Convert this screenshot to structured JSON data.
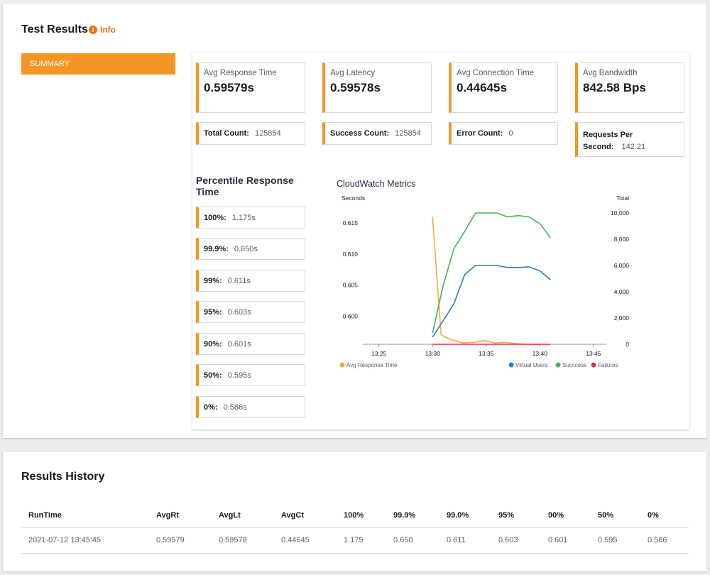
{
  "test_results": {
    "title": "Test Results",
    "info_label": "Info",
    "summary_label": "SUMMARY"
  },
  "metrics": [
    {
      "label": "Avg Response Time",
      "value": "0.59579s"
    },
    {
      "label": "Avg Latency",
      "value": "0.59578s"
    },
    {
      "label": "Avg Connection Time",
      "value": "0.44645s"
    },
    {
      "label": "Avg Bandwidth",
      "value": "842.58 Bps"
    }
  ],
  "counts": [
    {
      "label": "Total Count:",
      "value": "125854"
    },
    {
      "label": "Success Count:",
      "value": "125854"
    },
    {
      "label": "Error Count:",
      "value": "0"
    }
  ],
  "requests_per_second": {
    "label_line1": "Requests Per",
    "label_line2": "Second:",
    "value": "142.21"
  },
  "percentile": {
    "title": "Percentile Response Time",
    "items": [
      {
        "label": "100%:",
        "value": "1.175s"
      },
      {
        "label": "99.9%:",
        "value": "0.650s"
      },
      {
        "label": "99%:",
        "value": "0.611s"
      },
      {
        "label": "95%:",
        "value": "0.603s"
      },
      {
        "label": "90%:",
        "value": "0.601s"
      },
      {
        "label": "50%:",
        "value": "0.595s"
      },
      {
        "label": "0%:",
        "value": "0.586s"
      }
    ]
  },
  "chart_data": {
    "type": "line",
    "title": "CloudWatch Metrics",
    "y_left_label": "Seconds",
    "y_right_label": "Total",
    "x_ticks": [
      "13:25",
      "13:30",
      "13:35",
      "13:40",
      "13:45"
    ],
    "y_left_ticks": [
      0.6,
      0.605,
      0.61,
      0.615
    ],
    "y_left_tick_labels": [
      "0.600",
      "0.605",
      "0.610",
      "0.615"
    ],
    "y_left_range": [
      0.5955,
      0.6175
    ],
    "y_right_ticks": [
      0,
      2000,
      4000,
      6000,
      8000,
      10000
    ],
    "y_right_tick_labels": [
      "0",
      "2,000",
      "4,000",
      "6,000",
      "8,000",
      "10,000"
    ],
    "y_right_range": [
      0,
      10000
    ],
    "grid": false,
    "legend": "bottom",
    "x_minutes": [
      13.5,
      14.5,
      15.5,
      16.5,
      17.5,
      18.5,
      19.5,
      20.5,
      21.5,
      22.5,
      23.5,
      24.5
    ],
    "series": [
      {
        "name": "Avg Response Time",
        "axis": "left",
        "color": "#f5a742",
        "x": [
          13.0,
          13.8,
          14.8,
          15.8,
          16.8,
          17.8,
          18.8,
          19.8,
          20.8,
          21.8,
          22.8,
          23.8
        ],
        "values": [
          0.616,
          0.597,
          0.5962,
          0.5957,
          0.5958,
          0.5961,
          0.5957,
          0.5958,
          0.5956,
          0.5955,
          0.5955,
          0.5955
        ]
      },
      {
        "name": "Virtual Users",
        "axis": "right",
        "color": "#2e7bbf",
        "x": [
          13.0,
          14.0,
          15.0,
          16.0,
          17.0,
          18.0,
          19.0,
          20.0,
          21.0,
          22.0,
          23.0,
          24.0
        ],
        "values": [
          550,
          1800,
          3100,
          5300,
          6000,
          6000,
          6000,
          5850,
          5850,
          5900,
          5600,
          4900
        ]
      },
      {
        "name": "Succcess",
        "axis": "right",
        "color": "#44b35a",
        "x": [
          13.0,
          14.0,
          15.0,
          16.0,
          17.0,
          18.0,
          19.0,
          20.0,
          21.0,
          22.0,
          23.0,
          24.0
        ],
        "values": [
          850,
          4500,
          7300,
          8600,
          10000,
          10000,
          10000,
          9700,
          9800,
          9700,
          9200,
          8100
        ]
      },
      {
        "name": "Failures",
        "axis": "right",
        "color": "#e0343f",
        "x": [
          13.0,
          24.0
        ],
        "values": [
          0,
          0
        ]
      }
    ]
  },
  "history": {
    "title": "Results History",
    "columns": [
      "RunTime",
      "AvgRt",
      "AvgLt",
      "AvgCt",
      "100%",
      "99.9%",
      "99.0%",
      "95%",
      "90%",
      "50%",
      "0%"
    ],
    "rows": [
      [
        "2021-07-12 13:45:45",
        "0.59579",
        "0.59578",
        "0.44645",
        "1.175",
        "0.650",
        "0.611",
        "0.603",
        "0.601",
        "0.595",
        "0.586"
      ]
    ]
  }
}
